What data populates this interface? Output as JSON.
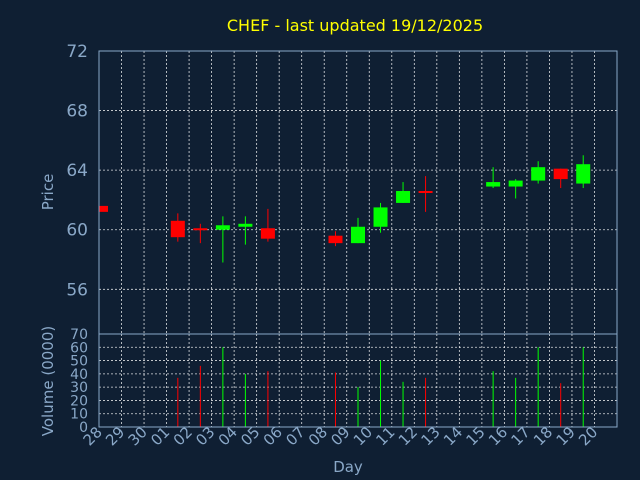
{
  "chart_data": {
    "type": "candlestick",
    "title": "CHEF - last updated 19/12/2025",
    "xlabel": "Day",
    "ylabel": "Price",
    "volume_label": "Volume (0000)",
    "price_ylim": [
      53,
      72
    ],
    "price_ticks": [
      56,
      60,
      64,
      68,
      72
    ],
    "volume_ylim": [
      0,
      70
    ],
    "volume_ticks": [
      0,
      10,
      20,
      30,
      40,
      50,
      60,
      70
    ],
    "x_ticks": [
      "28",
      "29",
      "30",
      "01",
      "02",
      "03",
      "04",
      "05",
      "06",
      "07",
      "08",
      "09",
      "10",
      "11",
      "12",
      "13",
      "14",
      "15",
      "16",
      "17",
      "18",
      "19",
      "20"
    ],
    "colors": {
      "up": "#00ff00",
      "down": "#ff0000",
      "title": "#ffff00",
      "axis": "#8aa8c8",
      "background": "#0f1f33"
    },
    "candles": [
      {
        "day": "28",
        "open": 61.6,
        "high": 61.6,
        "low": 61.2,
        "close": 61.2,
        "volume": 0
      },
      {
        "day": "01",
        "open": 60.6,
        "high": 61.1,
        "low": 59.2,
        "close": 59.5,
        "volume": 37
      },
      {
        "day": "02",
        "open": 60.1,
        "high": 60.4,
        "low": 59.1,
        "close": 60.0,
        "volume": 46
      },
      {
        "day": "03",
        "open": 60.0,
        "high": 60.9,
        "low": 57.8,
        "close": 60.3,
        "volume": 60
      },
      {
        "day": "04",
        "open": 60.2,
        "high": 60.9,
        "low": 59.0,
        "close": 60.4,
        "volume": 40
      },
      {
        "day": "05",
        "open": 60.1,
        "high": 61.4,
        "low": 59.2,
        "close": 59.4,
        "volume": 42
      },
      {
        "day": "08",
        "open": 59.6,
        "high": 59.9,
        "low": 58.9,
        "close": 59.1,
        "volume": 41
      },
      {
        "day": "09",
        "open": 59.1,
        "high": 60.8,
        "low": 59.1,
        "close": 60.2,
        "volume": 30
      },
      {
        "day": "10",
        "open": 60.2,
        "high": 61.8,
        "low": 59.8,
        "close": 61.5,
        "volume": 50
      },
      {
        "day": "11",
        "open": 61.8,
        "high": 63.2,
        "low": 61.8,
        "close": 62.6,
        "volume": 34
      },
      {
        "day": "12",
        "open": 62.6,
        "high": 63.6,
        "low": 61.2,
        "close": 62.5,
        "volume": 37
      },
      {
        "day": "15",
        "open": 62.9,
        "high": 64.2,
        "low": 62.8,
        "close": 63.2,
        "volume": 42
      },
      {
        "day": "16",
        "open": 62.9,
        "high": 63.4,
        "low": 62.1,
        "close": 63.3,
        "volume": 37
      },
      {
        "day": "17",
        "open": 63.3,
        "high": 64.6,
        "low": 63.1,
        "close": 64.2,
        "volume": 60
      },
      {
        "day": "18",
        "open": 64.1,
        "high": 64.1,
        "low": 62.8,
        "close": 63.4,
        "volume": 33
      },
      {
        "day": "19",
        "open": 63.1,
        "high": 65.0,
        "low": 62.8,
        "close": 64.4,
        "volume": 60
      }
    ]
  }
}
